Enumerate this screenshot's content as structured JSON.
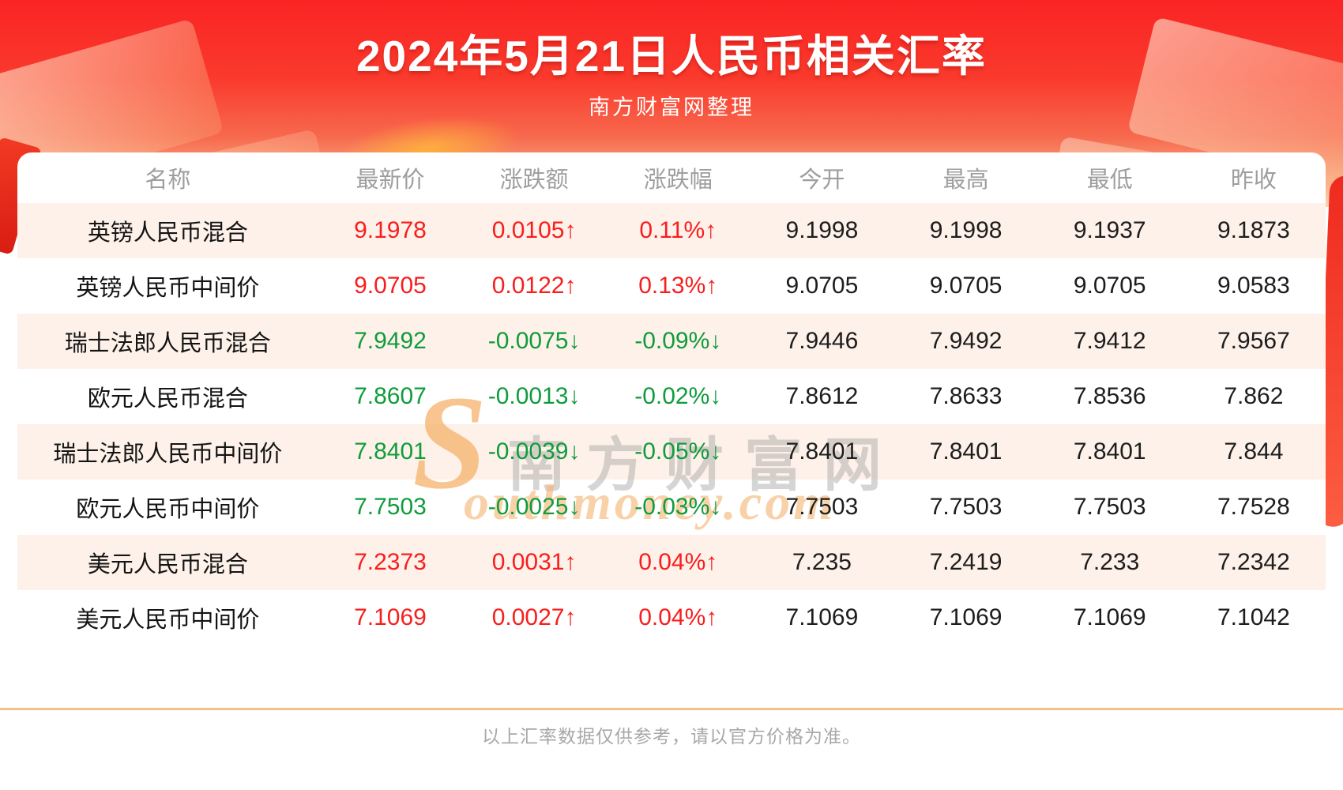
{
  "page": {
    "title": "2024年5月21日人民币相关汇率",
    "subtitle": "南方财富网整理",
    "footer_note": "以上汇率数据仅供参考，请以官方价格为准。"
  },
  "watermark": {
    "initial": "S",
    "cn_text": "南方财富网",
    "en_text": "outhmoney.com"
  },
  "chart_data": {
    "type": "table",
    "title": "2024年5月21日人民币相关汇率",
    "columns": [
      "名称",
      "最新价",
      "涨跌额",
      "涨跌幅",
      "今开",
      "最高",
      "最低",
      "昨收"
    ],
    "rows": [
      {
        "name": "英镑人民币混合",
        "latest": "9.1978",
        "change": "0.0105↑",
        "pct": "0.11%↑",
        "open": "9.1998",
        "high": "9.1998",
        "low": "9.1937",
        "prev": "9.1873",
        "trend": "up"
      },
      {
        "name": "英镑人民币中间价",
        "latest": "9.0705",
        "change": "0.0122↑",
        "pct": "0.13%↑",
        "open": "9.0705",
        "high": "9.0705",
        "low": "9.0705",
        "prev": "9.0583",
        "trend": "up"
      },
      {
        "name": "瑞士法郎人民币混合",
        "latest": "7.9492",
        "change": "-0.0075↓",
        "pct": "-0.09%↓",
        "open": "7.9446",
        "high": "7.9492",
        "low": "7.9412",
        "prev": "7.9567",
        "trend": "down"
      },
      {
        "name": "欧元人民币混合",
        "latest": "7.8607",
        "change": "-0.0013↓",
        "pct": "-0.02%↓",
        "open": "7.8612",
        "high": "7.8633",
        "low": "7.8536",
        "prev": "7.862",
        "trend": "down"
      },
      {
        "name": "瑞士法郎人民币中间价",
        "latest": "7.8401",
        "change": "-0.0039↓",
        "pct": "-0.05%↓",
        "open": "7.8401",
        "high": "7.8401",
        "low": "7.8401",
        "prev": "7.844",
        "trend": "down"
      },
      {
        "name": "欧元人民币中间价",
        "latest": "7.7503",
        "change": "-0.0025↓",
        "pct": "-0.03%↓",
        "open": "7.7503",
        "high": "7.7503",
        "low": "7.7503",
        "prev": "7.7528",
        "trend": "down"
      },
      {
        "name": "美元人民币混合",
        "latest": "7.2373",
        "change": "0.0031↑",
        "pct": "0.04%↑",
        "open": "7.235",
        "high": "7.2419",
        "low": "7.233",
        "prev": "7.2342",
        "trend": "up"
      },
      {
        "name": "美元人民币中间价",
        "latest": "7.1069",
        "change": "0.0027↑",
        "pct": "0.04%↑",
        "open": "7.1069",
        "high": "7.1069",
        "low": "7.1069",
        "prev": "7.1042",
        "trend": "up"
      }
    ]
  },
  "colors": {
    "up": "#f81e1e",
    "down": "#0f9c3c",
    "header_red": "#fa2424",
    "row_alt": "#fdf1e9",
    "divider": "#f5c18b",
    "muted": "#9e9e9e"
  }
}
